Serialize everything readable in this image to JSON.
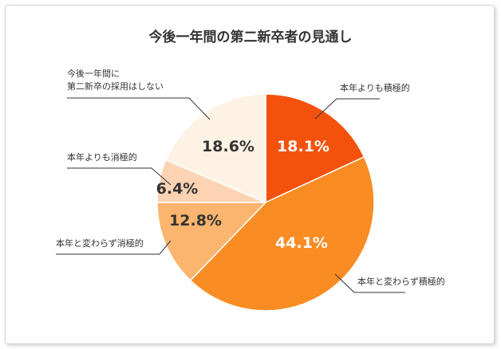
{
  "chart_data": {
    "type": "pie",
    "title": "今後一年間の第二新卒者の見通し",
    "slices": [
      {
        "label": "本年よりも積極的",
        "value": 18.1,
        "display": "18.1%",
        "color": "#f4520c",
        "text_color": "#ffffff"
      },
      {
        "label": "本年と変わらず積極的",
        "value": 44.1,
        "display": "44.1%",
        "color": "#fa8c24",
        "text_color": "#ffffff"
      },
      {
        "label": "本年と変わらず消極的",
        "value": 12.8,
        "display": "12.8%",
        "color": "#fbb56e",
        "text_color": "#333333"
      },
      {
        "label": "本年よりも消極的",
        "value": 6.4,
        "display": "6.4%",
        "color": "#fdd3b3",
        "text_color": "#333333"
      },
      {
        "label": "今後一年間に第二新卒の採用はしない",
        "label_lines": [
          "今後一年間に",
          "第二新卒の採用はしない"
        ],
        "value": 18.6,
        "display": "18.6%",
        "color": "#fef2e4",
        "text_color": "#333333"
      }
    ]
  }
}
